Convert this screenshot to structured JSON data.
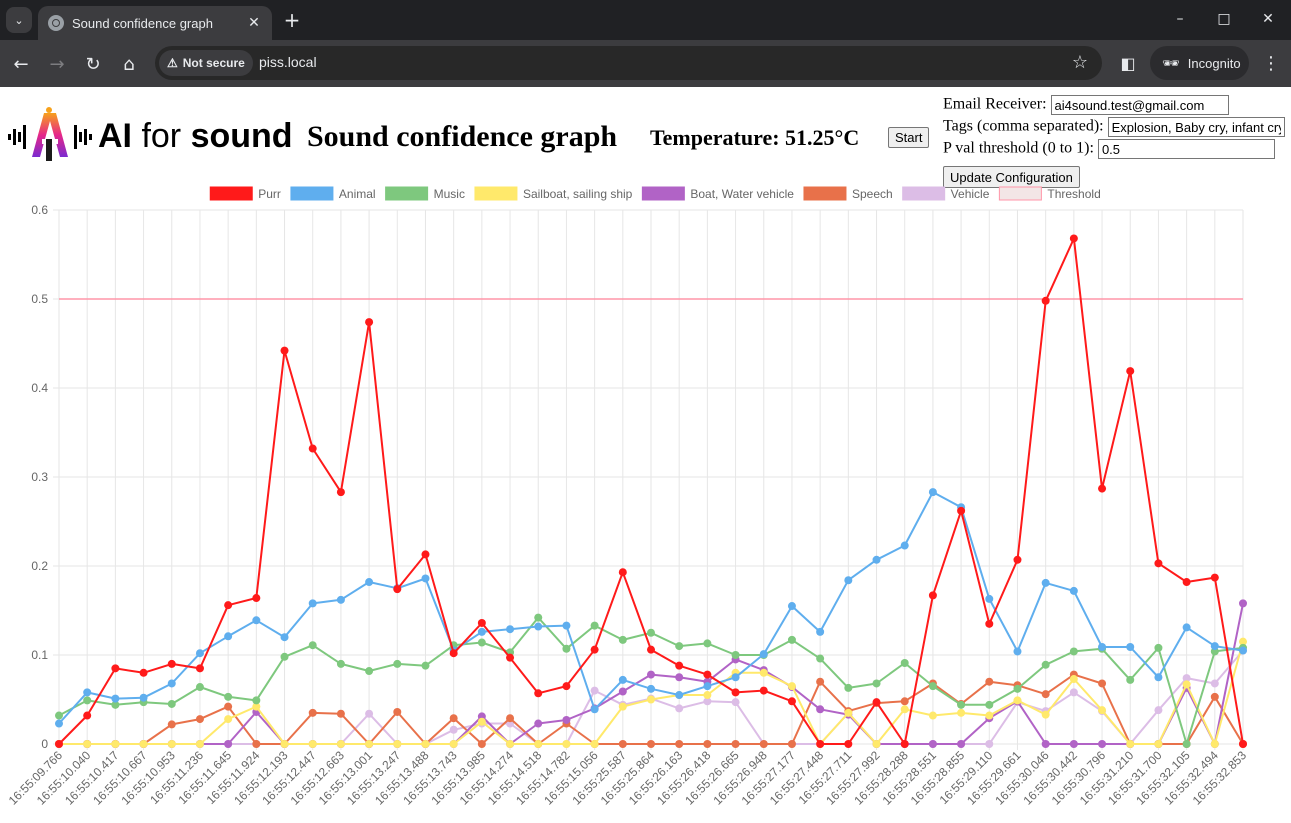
{
  "browser": {
    "tab_title": "Sound confidence graph",
    "security_label": "Not secure",
    "url": "piss.local",
    "incognito_label": "Incognito"
  },
  "header": {
    "logo_ai": "AI",
    "logo_for": "for",
    "logo_sound": "sound",
    "title": "Sound confidence graph",
    "temperature_label": "Temperature: 51.25°C",
    "start_label": "Start"
  },
  "config": {
    "email_label": "Email Receiver:",
    "email_value": "ai4sound.test@gmail.com",
    "tags_label": "Tags (comma separated):",
    "tags_value": "Explosion, Baby cry, infant cry",
    "pval_label": "P val threshold (0 to 1):",
    "pval_value": "0.5",
    "update_label": "Update Configuration"
  },
  "chart_data": {
    "type": "line",
    "ylim": [
      0,
      0.6
    ],
    "yticks": [
      "0",
      "0.1",
      "0.2",
      "0.3",
      "0.4",
      "0.5",
      "0.6"
    ],
    "legend_position": "top",
    "grid": true,
    "x": [
      "16:55:09.766",
      "16:55:10.040",
      "16:55:10.417",
      "16:55:10.667",
      "16:55:10.953",
      "16:55:11.236",
      "16:55:11.645",
      "16:55:11.924",
      "16:55:12.193",
      "16:55:12.447",
      "16:55:12.663",
      "16:55:13.001",
      "16:55:13.247",
      "16:55:13.488",
      "16:55:13.743",
      "16:55:13.985",
      "16:55:14.274",
      "16:55:14.518",
      "16:55:14.782",
      "16:55:15.056",
      "16:55:25.587",
      "16:55:25.864",
      "16:55:26.163",
      "16:55:26.418",
      "16:55:26.665",
      "16:55:26.948",
      "16:55:27.177",
      "16:55:27.448",
      "16:55:27.711",
      "16:55:27.992",
      "16:55:28.288",
      "16:55:28.551",
      "16:55:28.855",
      "16:55:29.110",
      "16:55:29.661",
      "16:55:30.046",
      "16:55:30.442",
      "16:55:30.796",
      "16:55:31.210",
      "16:55:31.700",
      "16:55:32.105",
      "16:55:32.494",
      "16:55:32.853"
    ],
    "series": [
      {
        "name": "Purr",
        "color": "#ff1a1a",
        "values": [
          0,
          0.032,
          0.085,
          0.08,
          0.09,
          0.085,
          0.156,
          0.164,
          0.442,
          0.332,
          0.283,
          0.474,
          0.174,
          0.213,
          0.102,
          0.136,
          0.097,
          0.057,
          0.065,
          0.106,
          0.193,
          0.106,
          0.088,
          0.078,
          0.058,
          0.06,
          0.048,
          0,
          0,
          0.047,
          0,
          0.167,
          0.262,
          0.135,
          0.207,
          0.498,
          0.568,
          0.287,
          0.419,
          0.203,
          0.182,
          0.187,
          0
        ]
      },
      {
        "name": "Animal",
        "color": "#5faeee",
        "values": [
          0.023,
          0.058,
          0.051,
          0.052,
          0.068,
          0.102,
          0.121,
          0.139,
          0.12,
          0.158,
          0.162,
          0.182,
          0.175,
          0.186,
          0.105,
          0.126,
          0.129,
          0.132,
          0.133,
          0.039,
          0.072,
          0.062,
          0.055,
          0.065,
          0.075,
          0.101,
          0.155,
          0.126,
          0.184,
          0.207,
          0.223,
          0.283,
          0.266,
          0.163,
          0.104,
          0.181,
          0.172,
          0.109,
          0.109,
          0.075,
          0.131,
          0.11,
          0.105
        ]
      },
      {
        "name": "Music",
        "color": "#7ec87e",
        "values": [
          0.032,
          0.049,
          0.044,
          0.047,
          0.045,
          0.064,
          0.053,
          0.049,
          0.098,
          0.111,
          0.09,
          0.082,
          0.09,
          0.088,
          0.111,
          0.114,
          0.103,
          0.142,
          0.107,
          0.133,
          0.117,
          0.125,
          0.11,
          0.113,
          0.1,
          0.1,
          0.117,
          0.096,
          0.063,
          0.068,
          0.091,
          0.065,
          0.044,
          0.044,
          0.062,
          0.089,
          0.104,
          0.107,
          0.072,
          0.108,
          0,
          0.104,
          0.108
        ]
      },
      {
        "name": "Sailboat, sailing ship",
        "color": "#ffe96b",
        "values": [
          0,
          0,
          0,
          0,
          0,
          0,
          0.028,
          0.042,
          0,
          0,
          0,
          0,
          0,
          0,
          0,
          0.025,
          0,
          0,
          0,
          0,
          0.042,
          0.05,
          0.055,
          0.055,
          0.08,
          0.08,
          0.065,
          0,
          0.035,
          0,
          0.039,
          0.032,
          0.035,
          0.032,
          0.049,
          0.033,
          0.073,
          0.038,
          0,
          0,
          0.067,
          0,
          0.115
        ]
      },
      {
        "name": "Boat, Water vehicle",
        "color": "#b163c6",
        "values": [
          0,
          0,
          0,
          0,
          0,
          0,
          0,
          0.036,
          0,
          0,
          0,
          0,
          0,
          0,
          0,
          0.031,
          0,
          0.023,
          0.027,
          0.04,
          0.059,
          0.078,
          0.075,
          0.07,
          0.095,
          0.083,
          0.064,
          0.039,
          0.033,
          0,
          0,
          0,
          0,
          0.029,
          0.048,
          0,
          0,
          0,
          0,
          0,
          0.063,
          0,
          0.158
        ]
      },
      {
        "name": "Speech",
        "color": "#e8714a",
        "values": [
          0,
          0,
          0,
          0,
          0.022,
          0.028,
          0.042,
          0,
          0,
          0.035,
          0.034,
          0,
          0.036,
          0,
          0.029,
          0,
          0.029,
          0,
          0.023,
          0,
          0,
          0,
          0,
          0,
          0,
          0,
          0,
          0.07,
          0.037,
          0.046,
          0.048,
          0.068,
          0.045,
          0.07,
          0.066,
          0.056,
          0.078,
          0.068,
          0,
          0,
          0,
          0.053,
          0
        ]
      },
      {
        "name": "Vehicle",
        "color": "#dcbde6",
        "values": [
          0,
          0,
          0,
          0,
          0,
          0,
          0,
          0,
          0,
          0,
          0,
          0.034,
          0,
          0,
          0.016,
          0.023,
          0.023,
          0,
          0,
          0.06,
          0.044,
          0.051,
          0.04,
          0.048,
          0.047,
          0,
          0,
          0,
          0.035,
          0,
          0,
          0,
          0,
          0,
          0.047,
          0.037,
          0.058,
          0.037,
          0,
          0.038,
          0.074,
          0.068,
          0.105
        ]
      }
    ],
    "threshold": {
      "name": "Threshold",
      "value": 0.5,
      "color": "#ff95a8"
    }
  }
}
